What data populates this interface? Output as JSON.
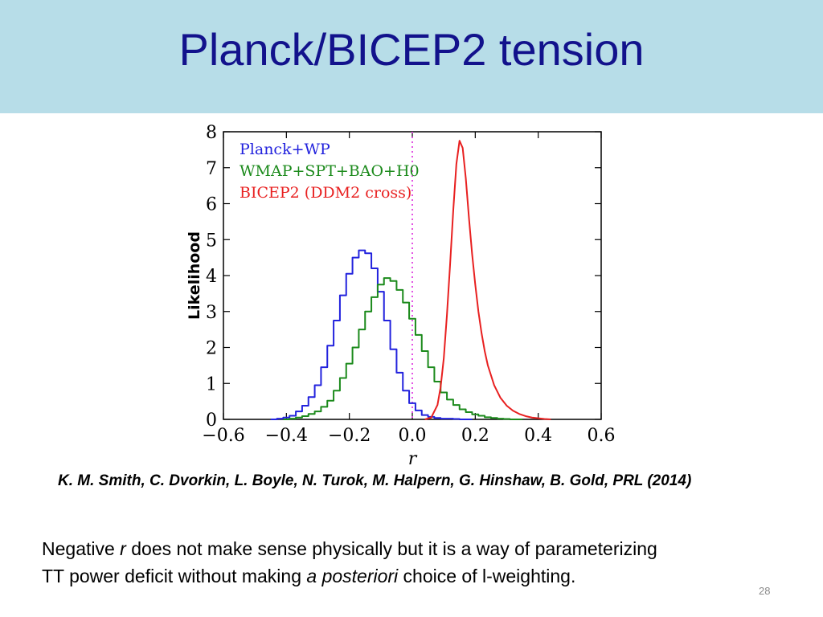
{
  "slide": {
    "title": "Planck/BICEP2 tension",
    "citation": "K. M. Smith, C. Dvorkin, L. Boyle, N. Turok, M. Halpern, G. Hinshaw, B. Gold, PRL (2014)",
    "note": {
      "line1_a": "Negative ",
      "line1_r": "r",
      "line1_b": " does not make sense physically but it is a way of parameterizing",
      "line2_a": "TT power deficit without making ",
      "line2_italic": "a posteriori",
      "line2_b": " choice of l-weighting."
    },
    "page_number": "28"
  },
  "colors": {
    "title_bar": "#b7dde8",
    "title_text": "#12128c",
    "planck": "#2222dd",
    "wmap": "#1b8a1b",
    "bicep2": "#e82020",
    "marker": "#e040e0"
  },
  "chart_data": {
    "type": "line",
    "xlabel": "r",
    "ylabel": "Likelihood",
    "xlim": [
      -0.6,
      0.6
    ],
    "ylim": [
      0,
      8
    ],
    "xticks": [
      -0.6,
      -0.4,
      -0.2,
      0.0,
      0.2,
      0.4,
      0.6
    ],
    "xtick_labels": [
      "−0.6",
      "−0.4",
      "−0.2",
      "0.0",
      "0.2",
      "0.4",
      "0.6"
    ],
    "yticks": [
      0,
      1,
      2,
      3,
      4,
      5,
      6,
      7,
      8
    ],
    "ytick_labels": [
      "0",
      "1",
      "2",
      "3",
      "4",
      "5",
      "6",
      "7",
      "8"
    ],
    "vline_x": 0.0,
    "legend_position": "top-left",
    "series": [
      {
        "name": "Planck+WP",
        "step": true,
        "color": "#2222dd",
        "x": [
          -0.44,
          -0.42,
          -0.4,
          -0.38,
          -0.36,
          -0.34,
          -0.32,
          -0.3,
          -0.28,
          -0.26,
          -0.24,
          -0.22,
          -0.2,
          -0.18,
          -0.16,
          -0.14,
          -0.12,
          -0.1,
          -0.08,
          -0.06,
          -0.04,
          -0.02,
          0.0,
          0.02,
          0.04,
          0.06,
          0.08,
          0.1,
          0.12,
          0.14,
          0.16,
          0.18
        ],
        "y": [
          0.0,
          0.02,
          0.05,
          0.1,
          0.22,
          0.38,
          0.62,
          0.95,
          1.45,
          2.05,
          2.75,
          3.45,
          4.05,
          4.5,
          4.7,
          4.62,
          4.2,
          3.55,
          2.75,
          1.95,
          1.3,
          0.8,
          0.45,
          0.25,
          0.12,
          0.07,
          0.04,
          0.02,
          0.02,
          0.01,
          0.0,
          0.0
        ]
      },
      {
        "name": "WMAP+SPT+BAO+H0",
        "step": true,
        "color": "#1b8a1b",
        "x": [
          -0.4,
          -0.38,
          -0.36,
          -0.34,
          -0.32,
          -0.3,
          -0.28,
          -0.26,
          -0.24,
          -0.22,
          -0.2,
          -0.18,
          -0.16,
          -0.14,
          -0.12,
          -0.1,
          -0.08,
          -0.06,
          -0.04,
          -0.02,
          0.0,
          0.02,
          0.04,
          0.06,
          0.08,
          0.1,
          0.12,
          0.14,
          0.16,
          0.18,
          0.2,
          0.22,
          0.24,
          0.26,
          0.28,
          0.3,
          0.32,
          0.34
        ],
        "y": [
          0.0,
          0.02,
          0.05,
          0.09,
          0.15,
          0.22,
          0.35,
          0.52,
          0.8,
          1.15,
          1.55,
          2.0,
          2.5,
          3.0,
          3.4,
          3.75,
          3.93,
          3.85,
          3.6,
          3.25,
          2.8,
          2.35,
          1.9,
          1.45,
          1.05,
          0.75,
          0.55,
          0.4,
          0.28,
          0.2,
          0.14,
          0.1,
          0.06,
          0.04,
          0.02,
          0.01,
          0.0,
          0.0
        ]
      },
      {
        "name": "BICEP2 (DDM2 cross)",
        "step": false,
        "color": "#e82020",
        "x": [
          0.04,
          0.06,
          0.08,
          0.09,
          0.1,
          0.11,
          0.12,
          0.13,
          0.14,
          0.15,
          0.16,
          0.17,
          0.18,
          0.19,
          0.2,
          0.21,
          0.22,
          0.23,
          0.24,
          0.26,
          0.28,
          0.3,
          0.32,
          0.34,
          0.36,
          0.38,
          0.4,
          0.42,
          0.44
        ],
        "y": [
          0.0,
          0.05,
          0.4,
          0.9,
          1.7,
          2.9,
          4.3,
          5.8,
          7.1,
          7.75,
          7.55,
          6.7,
          5.6,
          4.6,
          3.75,
          3.0,
          2.4,
          1.9,
          1.5,
          0.95,
          0.6,
          0.38,
          0.24,
          0.15,
          0.09,
          0.05,
          0.03,
          0.01,
          0.0
        ]
      }
    ]
  }
}
